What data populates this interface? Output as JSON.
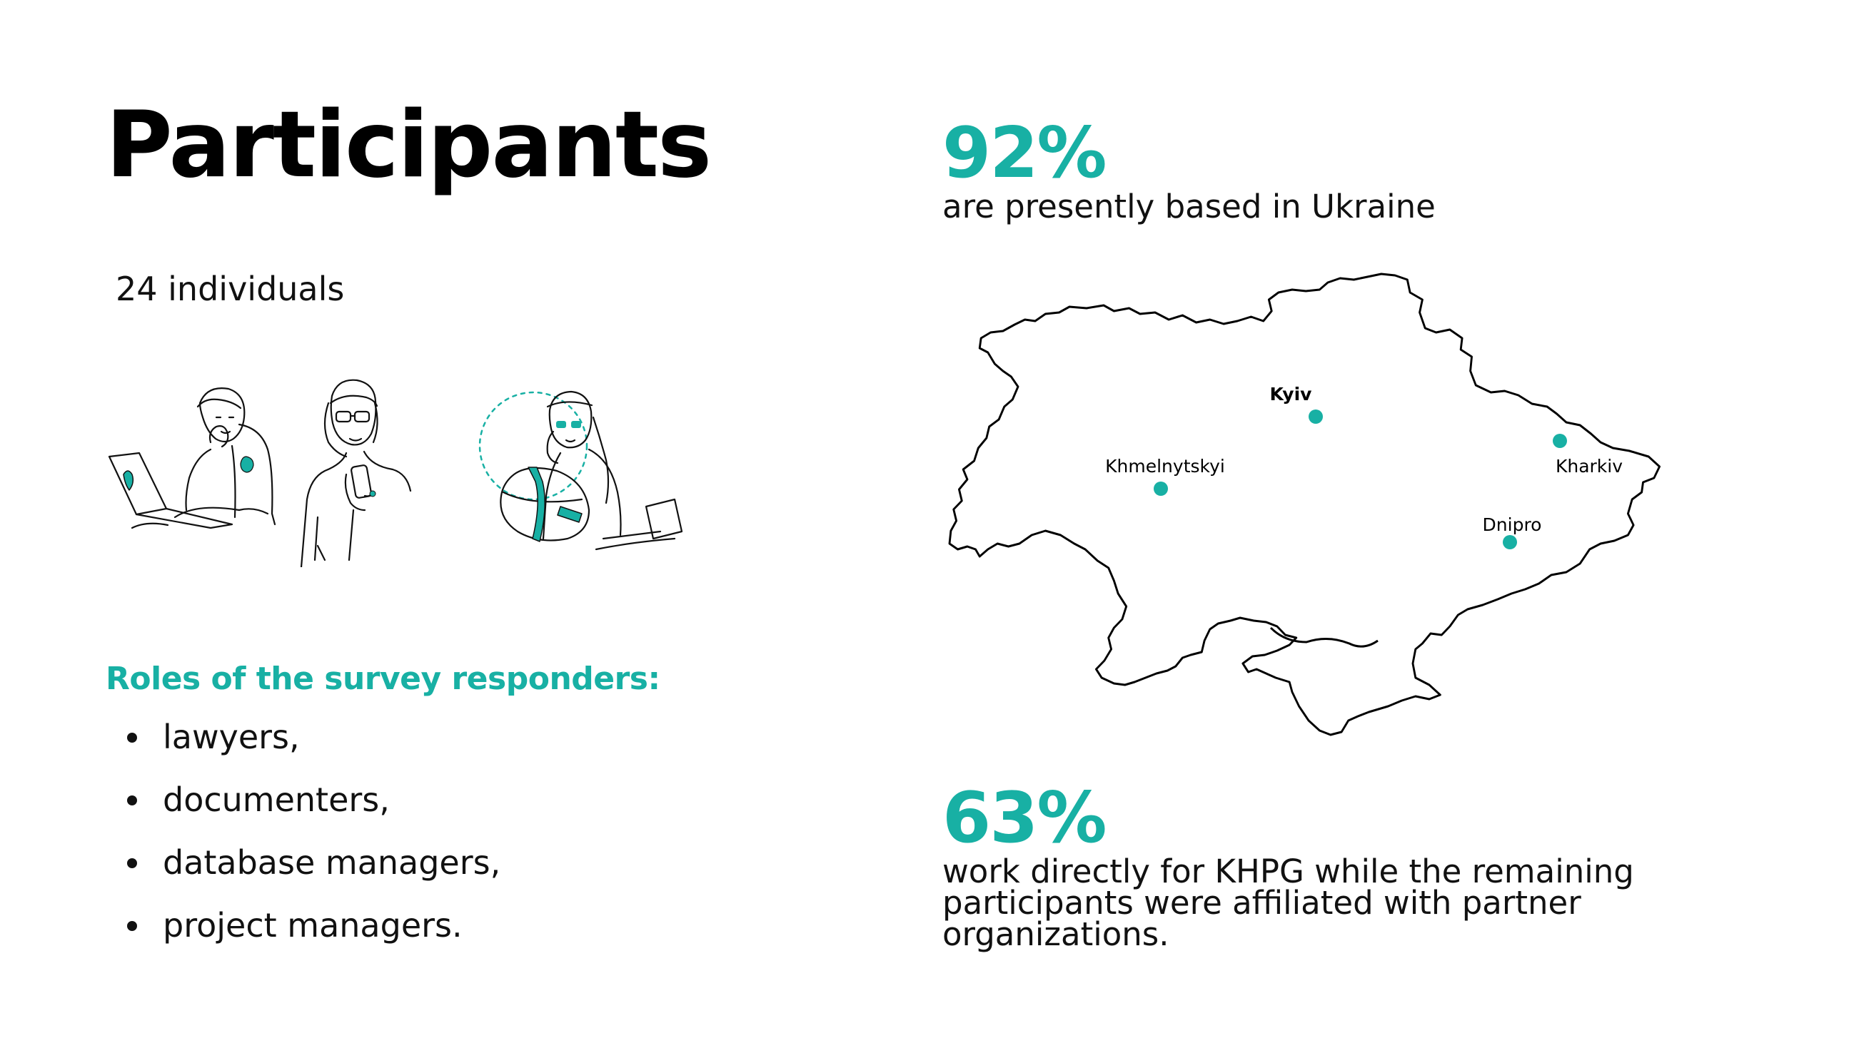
{
  "title": "Participants",
  "participants_count": "24 individuals",
  "roles": {
    "heading": "Roles of the survey responders:",
    "items": [
      "lawyers,",
      "documenters,",
      "database managers,",
      "project managers."
    ]
  },
  "stats": [
    {
      "value": "92%",
      "description": "are presently based in Ukraine"
    },
    {
      "value": "63%",
      "description": "work directly for KHPG while the remaining participants were affiliated with partner organizations."
    }
  ],
  "map": {
    "cities": [
      {
        "name": "Kyiv",
        "capital": true
      },
      {
        "name": "Khmelnytskyi",
        "capital": false
      },
      {
        "name": "Kharkiv",
        "capital": false
      },
      {
        "name": "Dnipro",
        "capital": false
      }
    ]
  },
  "colors": {
    "accent": "#18b0a4",
    "text": "#111111",
    "background": "#ffffff"
  },
  "illustrations": [
    "person-with-laptop-illustration",
    "person-with-phone-illustration",
    "person-on-call-illustration"
  ]
}
